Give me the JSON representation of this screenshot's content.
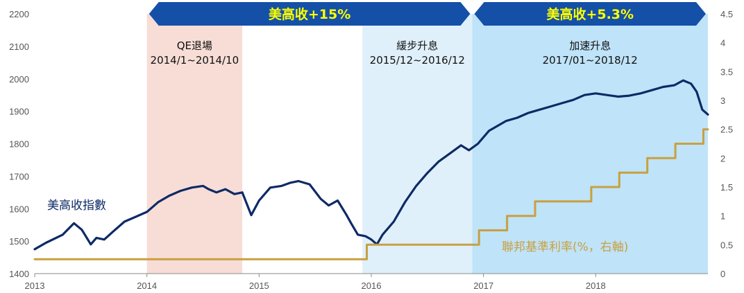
{
  "chart_data": {
    "type": "line",
    "x_ticks": [
      "2013",
      "2014",
      "2015",
      "2016",
      "2017",
      "2018"
    ],
    "y_left_ticks": [
      "1400",
      "1500",
      "1600",
      "1700",
      "1800",
      "1900",
      "2000",
      "2100",
      "2200"
    ],
    "y_right_ticks": [
      "0",
      "0.5",
      "1",
      "1.5",
      "2",
      "2.5",
      "3",
      "3.5",
      "4",
      "4.5"
    ],
    "y_left_range": [
      1400,
      2200
    ],
    "y_right_range": [
      0,
      4.5
    ],
    "x_range": [
      2013.0,
      2019.0
    ],
    "banners": [
      {
        "text": "美高收+15%",
        "x_start": 2014.0,
        "x_end": 2016.9
      },
      {
        "text": "美高收+5.3%",
        "x_start": 2016.9,
        "x_end": 2019.0
      }
    ],
    "regions": [
      {
        "title": "QE退場",
        "range_text": "2014/1~2014/10",
        "x_start": 2014.0,
        "x_end": 2014.85,
        "color": "#f7ddd6"
      },
      {
        "title": "緩步升息",
        "range_text": "2015/12~2016/12",
        "x_start": 2015.92,
        "x_end": 2016.9,
        "color": "#e0f0fb"
      },
      {
        "title": "加速升息",
        "range_text": "2017/01~2018/12",
        "x_start": 2016.9,
        "x_end": 2019.0,
        "color": "#bfe3f8"
      }
    ],
    "series": [
      {
        "name": "美高收指數",
        "axis": "left",
        "color": "#0d2a66",
        "x": [
          2013.0,
          2013.1,
          2013.25,
          2013.35,
          2013.42,
          2013.5,
          2013.55,
          2013.62,
          2013.7,
          2013.8,
          2013.9,
          2014.0,
          2014.1,
          2014.2,
          2014.3,
          2014.4,
          2014.5,
          2014.55,
          2014.62,
          2014.7,
          2014.78,
          2014.85,
          2014.93,
          2015.0,
          2015.1,
          2015.2,
          2015.28,
          2015.35,
          2015.45,
          2015.55,
          2015.62,
          2015.7,
          2015.78,
          2015.82,
          2015.88,
          2015.95,
          2016.0,
          2016.05,
          2016.1,
          2016.2,
          2016.3,
          2016.4,
          2016.5,
          2016.6,
          2016.7,
          2016.8,
          2016.87,
          2016.95,
          2017.05,
          2017.2,
          2017.3,
          2017.4,
          2017.5,
          2017.6,
          2017.7,
          2017.8,
          2017.9,
          2018.0,
          2018.1,
          2018.2,
          2018.3,
          2018.4,
          2018.5,
          2018.6,
          2018.7,
          2018.78,
          2018.85,
          2018.9,
          2018.95,
          2019.0
        ],
        "values": [
          1475,
          1495,
          1520,
          1555,
          1535,
          1490,
          1510,
          1505,
          1530,
          1560,
          1575,
          1590,
          1620,
          1640,
          1655,
          1665,
          1670,
          1660,
          1650,
          1660,
          1645,
          1650,
          1580,
          1625,
          1665,
          1670,
          1680,
          1685,
          1675,
          1630,
          1610,
          1625,
          1580,
          1555,
          1520,
          1515,
          1505,
          1490,
          1520,
          1560,
          1620,
          1670,
          1710,
          1745,
          1770,
          1795,
          1780,
          1800,
          1840,
          1870,
          1880,
          1895,
          1905,
          1915,
          1925,
          1935,
          1950,
          1955,
          1950,
          1945,
          1948,
          1955,
          1965,
          1975,
          1980,
          1995,
          1985,
          1960,
          1905,
          1890
        ]
      },
      {
        "name": "聯邦基準利率(%，右軸)",
        "axis": "right",
        "color": "#c8a040",
        "step": true,
        "x": [
          2013.0,
          2015.96,
          2016.96,
          2017.21,
          2017.46,
          2017.96,
          2018.21,
          2018.46,
          2018.71,
          2018.96,
          2019.0
        ],
        "values": [
          0.25,
          0.5,
          0.75,
          1.0,
          1.25,
          1.5,
          1.75,
          2.0,
          2.25,
          2.5,
          2.5
        ]
      }
    ]
  }
}
